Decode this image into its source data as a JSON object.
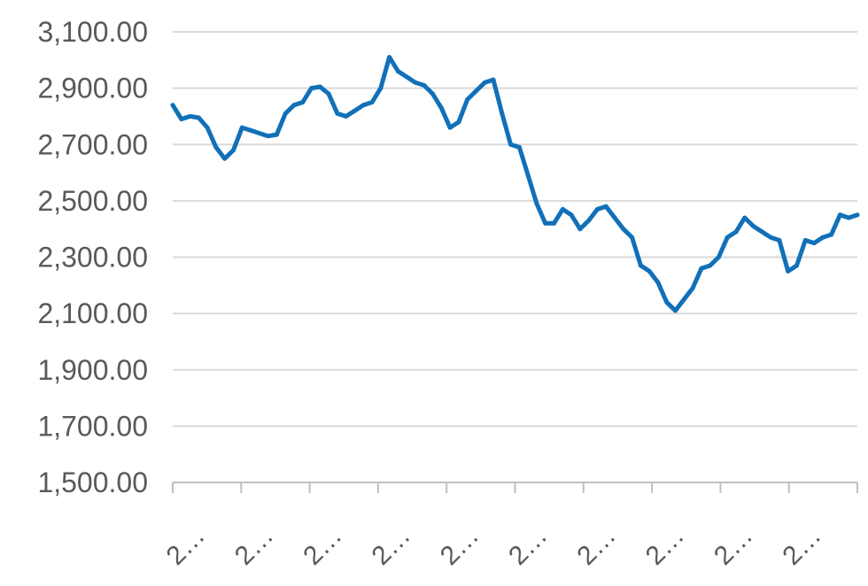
{
  "chart_data": {
    "type": "line",
    "title": "",
    "xlabel": "",
    "ylabel": "",
    "ylim": [
      1500,
      3100
    ],
    "yticks": [
      1500,
      1700,
      1900,
      2100,
      2300,
      2500,
      2700,
      2900,
      3100
    ],
    "ytick_labels": [
      "1,500.00",
      "1,700.00",
      "1,900.00",
      "2,100.00",
      "2,300.00",
      "2,500.00",
      "2,700.00",
      "2,900.00",
      "3,100.00"
    ],
    "xtick_labels": [
      "2…",
      "2…",
      "2…",
      "2…",
      "2…",
      "2…",
      "2…",
      "2…",
      "2…",
      "2…"
    ],
    "grid": true,
    "series": [
      {
        "color": "#1170b8",
        "values": [
          2840,
          2790,
          2800,
          2795,
          2760,
          2690,
          2650,
          2680,
          2760,
          2750,
          2740,
          2730,
          2735,
          2810,
          2840,
          2850,
          2900,
          2905,
          2880,
          2810,
          2800,
          2820,
          2840,
          2850,
          2900,
          3010,
          2960,
          2940,
          2920,
          2910,
          2880,
          2830,
          2760,
          2780,
          2860,
          2890,
          2920,
          2930,
          2810,
          2700,
          2690,
          2590,
          2490,
          2420,
          2420,
          2470,
          2450,
          2400,
          2430,
          2470,
          2480,
          2440,
          2400,
          2370,
          2270,
          2250,
          2210,
          2140,
          2110,
          2150,
          2190,
          2260,
          2270,
          2300,
          2370,
          2390,
          2440,
          2410,
          2390,
          2370,
          2360,
          2250,
          2270,
          2360,
          2350,
          2370,
          2380,
          2450,
          2440,
          2450
        ]
      }
    ]
  }
}
